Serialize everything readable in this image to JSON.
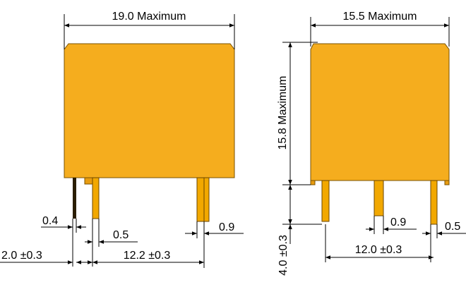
{
  "front_view": {
    "width_label": "19.0 Maximum",
    "pin_width_label": "0.4",
    "pin_thickness_label": "0.5",
    "pin_offset_label": "2.0 ±0.3",
    "pin_spacing_label": "12.2 ±0.3",
    "right_pin_width_label": "0.9"
  },
  "side_view": {
    "width_label": "15.5 Maximum",
    "height_label": "15.8 Maximum",
    "pin_length_label": "4.0 ±0.3",
    "pin_spacing_label": "12.0 ±0.3",
    "center_pin_width_label": "0.9",
    "right_pin_width_label": "0.5"
  },
  "colors": {
    "body": "#f5ad1e",
    "pin": "#f2a800",
    "outline": "#7a5200",
    "dimension_line": "#000000"
  }
}
